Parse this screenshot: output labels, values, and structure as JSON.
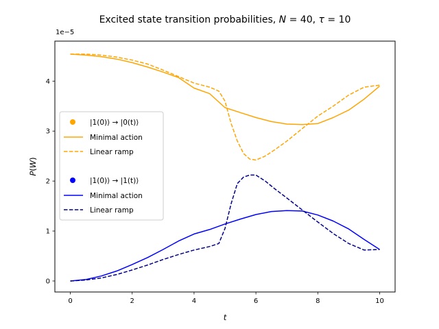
{
  "chart_data": {
    "type": "line",
    "title": "Excited state transition probabilities, N = 40, τ = 10",
    "xlabel": "t",
    "ylabel": "P(W)",
    "offset_text": "1e−5",
    "xlim": [
      -0.5,
      10.5
    ],
    "ylim": [
      -0.22,
      4.8
    ],
    "xticks": [
      0,
      2,
      4,
      6,
      8,
      10
    ],
    "yticks": [
      0,
      1,
      2,
      3,
      4
    ],
    "grid": false,
    "legend_position": "left",
    "legend_groups": [
      {
        "header": "|1(0)⟩ → |0(t)⟩",
        "color": "#FFA500",
        "entries": [
          "Minimal action",
          "Linear ramp"
        ]
      },
      {
        "header": "|1(0)⟩ → |1(t)⟩",
        "color": "#0000FF",
        "entries": [
          "Minimal action",
          "Linear ramp"
        ]
      }
    ],
    "series": [
      {
        "name": "Minimal action",
        "group": "|1(0)⟩ → |0(t)⟩",
        "color": "#FFA500",
        "style": "solid",
        "x": [
          0,
          0.5,
          1,
          1.5,
          2,
          2.5,
          3,
          3.5,
          4,
          4.5,
          5,
          5.5,
          6,
          6.5,
          7,
          7.5,
          8,
          8.5,
          9,
          9.5,
          10
        ],
        "y": [
          4.54,
          4.52,
          4.49,
          4.44,
          4.37,
          4.28,
          4.18,
          4.07,
          3.86,
          3.75,
          3.47,
          3.37,
          3.27,
          3.19,
          3.14,
          3.13,
          3.15,
          3.27,
          3.42,
          3.64,
          3.9
        ]
      },
      {
        "name": "Linear ramp",
        "group": "|1(0)⟩ → |0(t)⟩",
        "color": "#FFA500",
        "style": "dashed",
        "x": [
          0,
          0.5,
          1,
          1.5,
          2,
          2.5,
          3,
          3.5,
          4,
          4.5,
          4.8,
          5,
          5.2,
          5.4,
          5.6,
          5.8,
          6,
          6.3,
          6.6,
          7,
          7.5,
          8,
          8.5,
          9,
          9.5,
          10
        ],
        "y": [
          4.54,
          4.54,
          4.52,
          4.48,
          4.42,
          4.34,
          4.22,
          4.09,
          3.96,
          3.88,
          3.8,
          3.6,
          3.15,
          2.8,
          2.55,
          2.44,
          2.42,
          2.5,
          2.62,
          2.8,
          3.05,
          3.3,
          3.5,
          3.72,
          3.88,
          3.92
        ]
      },
      {
        "name": "Minimal action",
        "group": "|1(0)⟩ → |1(t)⟩",
        "color": "#0000FF",
        "style": "solid",
        "x": [
          0,
          0.5,
          1,
          1.5,
          2,
          2.5,
          3,
          3.5,
          4,
          4.5,
          5,
          5.5,
          6,
          6.5,
          7,
          7.5,
          8,
          8.5,
          9,
          9.5,
          10
        ],
        "y": [
          0.0,
          0.03,
          0.1,
          0.2,
          0.33,
          0.47,
          0.63,
          0.8,
          0.94,
          1.03,
          1.14,
          1.24,
          1.33,
          1.39,
          1.41,
          1.4,
          1.32,
          1.2,
          1.04,
          0.83,
          0.63
        ]
      },
      {
        "name": "Linear ramp",
        "group": "|1(0)⟩ → |1(t)⟩",
        "color": "#00008B",
        "style": "dashed",
        "x": [
          0,
          0.5,
          1,
          1.5,
          2,
          2.5,
          3,
          3.5,
          4,
          4.5,
          4.8,
          5,
          5.2,
          5.4,
          5.6,
          5.8,
          6,
          6.3,
          6.6,
          7,
          7.5,
          8,
          8.5,
          9,
          9.5,
          10
        ],
        "y": [
          0.0,
          0.02,
          0.06,
          0.13,
          0.22,
          0.32,
          0.43,
          0.53,
          0.62,
          0.69,
          0.75,
          1.05,
          1.55,
          1.95,
          2.08,
          2.12,
          2.12,
          2.0,
          1.85,
          1.66,
          1.42,
          1.18,
          0.95,
          0.75,
          0.62,
          0.63
        ]
      }
    ]
  }
}
